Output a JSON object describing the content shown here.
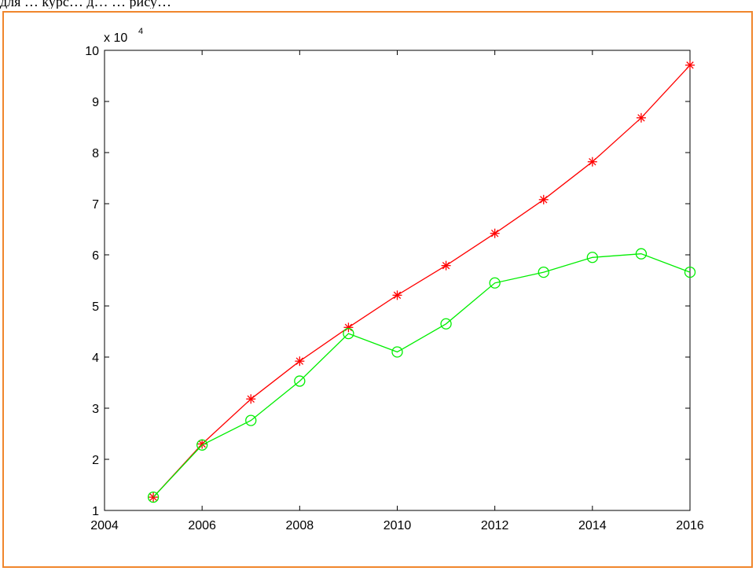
{
  "caption_text": "для … курс… д… … рису…",
  "chart_data": {
    "type": "line",
    "x": [
      2005,
      2006,
      2007,
      2008,
      2009,
      2010,
      2011,
      2012,
      2013,
      2014,
      2015,
      2016
    ],
    "series": [
      {
        "marker": "asterisk",
        "color": "#ff0000",
        "values": [
          12600,
          23000,
          31800,
          39200,
          45800,
          52100,
          57900,
          64200,
          70800,
          78200,
          86800,
          97100
        ]
      },
      {
        "marker": "circle",
        "color": "#00ee00",
        "values": [
          12600,
          22800,
          27600,
          35300,
          44600,
          41000,
          46500,
          54500,
          56600,
          59500,
          60200,
          56600
        ]
      }
    ],
    "xlim": [
      2004,
      2016
    ],
    "ylim": [
      10000,
      100000
    ],
    "x_ticks": [
      2004,
      2006,
      2008,
      2010,
      2012,
      2014,
      2016
    ],
    "y_ticks": [
      1,
      2,
      3,
      4,
      5,
      6,
      7,
      8,
      9,
      10
    ],
    "y_scale_label": "x 10",
    "y_scale_exponent": "4",
    "grid": false,
    "box": true
  }
}
